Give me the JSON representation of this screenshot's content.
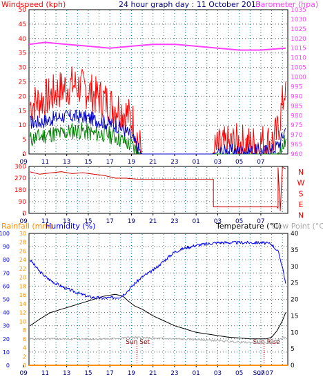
{
  "header": {
    "left": "Windspeed (kph)",
    "center": "24 hour graph day : 11 October 2013",
    "right": "Barometer (hpa)"
  },
  "colors": {
    "wind_gust": "#ff0000",
    "wind_avg": "#0000c8",
    "wind_low": "#008000",
    "barometer": "#ff40ff",
    "direction": "#d00000",
    "rainfall": "#ff8c00",
    "humidity": "#0000ff",
    "temperature": "#000000",
    "dew": "#aaaaaa",
    "axis": "#000000",
    "grid": "#008080"
  },
  "x_ticks": [
    "11",
    "13",
    "15",
    "17",
    "19",
    "21",
    "23",
    "01",
    "03",
    "05",
    "07",
    "09"
  ],
  "mid_labels": {
    "sunset": "Sun Set",
    "sunrise": "Sun Rise"
  },
  "bottom_axis_extra": [
    "Sun",
    "07"
  ],
  "chart_data": [
    {
      "type": "line",
      "title": "24 hour graph day : 11 October 2013",
      "y_left_label": "Windspeed (kph)",
      "y_right_label": "Barometer (hpa)",
      "x_range_hours": [
        9.5,
        33.5
      ],
      "y_left_range": [
        0,
        50
      ],
      "y_left_ticks": [
        0,
        5,
        10,
        15,
        20,
        25,
        30,
        35,
        40,
        45,
        50
      ],
      "y_right_range": [
        960,
        1035
      ],
      "y_right_ticks": [
        960,
        965,
        970,
        975,
        980,
        985,
        990,
        995,
        1000,
        1005,
        1010,
        1015,
        1020,
        1025,
        1030,
        1035
      ],
      "series": [
        {
          "name": "Windspeed (kph)",
          "axis": "left",
          "x": [
            9.6,
            10.2,
            10.8,
            11.5,
            12.2,
            12.9,
            13.6,
            14.3,
            15.0,
            15.7,
            16.4,
            17.1,
            17.8,
            18.5,
            19.2,
            19.6,
            20.0,
            21.0,
            23.0,
            25.0,
            26.5,
            27.0,
            28.0,
            29.0,
            30.0,
            31.0,
            32.0,
            32.5,
            33.0,
            33.3
          ],
          "values": [
            17,
            18,
            19,
            20,
            22,
            23,
            24,
            23,
            22,
            20,
            19,
            17,
            16,
            14,
            11,
            5,
            0,
            0,
            0,
            0,
            0,
            2,
            3,
            4,
            3,
            4,
            4,
            7,
            17,
            25
          ]
        },
        {
          "name": "Windspeed avg",
          "axis": "left",
          "x": [
            9.6,
            10.5,
            11.5,
            12.5,
            13.5,
            14.5,
            15.5,
            16.5,
            17.5,
            18.5,
            19.2,
            19.6,
            20.0,
            26.5,
            27.5,
            29.0,
            30.5,
            32.0,
            32.8,
            33.3
          ],
          "values": [
            11,
            11,
            12,
            13,
            13,
            13,
            12,
            11,
            10,
            8,
            5,
            2,
            0,
            0,
            1,
            1,
            1,
            1,
            4,
            9
          ]
        },
        {
          "name": "Windspeed low",
          "axis": "left",
          "x": [
            9.6,
            10.5,
            11.5,
            12.5,
            13.5,
            14.5,
            15.5,
            16.5,
            17.5,
            18.5,
            19.0,
            19.5,
            20.0,
            32.5,
            33.0,
            33.3
          ],
          "values": [
            5,
            6,
            7,
            7,
            8,
            8,
            7,
            7,
            6,
            4,
            3,
            1,
            0,
            0,
            2,
            5
          ]
        },
        {
          "name": "Barometer (hpa)",
          "axis": "right",
          "x": [
            9.5,
            11.0,
            13.0,
            15.0,
            17.0,
            19.0,
            21.0,
            23.0,
            25.0,
            27.0,
            29.0,
            31.0,
            33.3
          ],
          "values": [
            1017,
            1018,
            1017,
            1016,
            1015,
            1016,
            1017,
            1017,
            1016,
            1015,
            1014,
            1014,
            1015
          ]
        }
      ]
    },
    {
      "type": "line",
      "y_left_range": [
        0,
        360
      ],
      "y_left_ticks": [
        0,
        90,
        180,
        270,
        360
      ],
      "right_labels": [
        "N",
        "W",
        "S",
        "E",
        "N"
      ],
      "series": [
        {
          "name": "Wind direction",
          "x": [
            9.6,
            10.5,
            11.5,
            12.5,
            13.5,
            14.5,
            15.5,
            16.5,
            17.5,
            18.5,
            19.5,
            20.0,
            26.6,
            26.6,
            32.5,
            32.6,
            32.6,
            32.8,
            33.0,
            33.3
          ],
          "values": [
            318,
            300,
            310,
            320,
            305,
            312,
            300,
            290,
            270,
            270,
            262,
            262,
            262,
            50,
            50,
            40,
            350,
            20,
            355,
            340
          ]
        }
      ]
    },
    {
      "type": "line",
      "header_left": "Rainfall (mm)",
      "header_mid": "Humidity (%)",
      "header_right_a": "Temperature (°C)",
      "header_right_b": "Dew Point (°C)",
      "rain_ticks": [
        0,
        2,
        4,
        6,
        8,
        10,
        12,
        14,
        16,
        18,
        20,
        22,
        24,
        26,
        28,
        30
      ],
      "hum_ticks": [
        0,
        10,
        20,
        30,
        40,
        50,
        60,
        70,
        80,
        90,
        100
      ],
      "temp_ticks": [
        0,
        5,
        10,
        15,
        20,
        25,
        30,
        35,
        40
      ],
      "series": [
        {
          "name": "Humidity (%)",
          "axis": "humidity",
          "x": [
            9.6,
            10.0,
            10.5,
            11.2,
            12.0,
            13.0,
            14.0,
            15.0,
            16.0,
            17.0,
            18.0,
            18.6,
            19.3,
            20.0,
            21.0,
            22.0,
            23.0,
            24.0,
            25.0,
            26.0,
            27.0,
            28.0,
            29.0,
            30.0,
            31.0,
            32.0,
            32.6,
            33.0,
            33.3
          ],
          "values": [
            80,
            76,
            71,
            66,
            62,
            58,
            55,
            52,
            51,
            51,
            52,
            56,
            62,
            67,
            72,
            79,
            86,
            89,
            91,
            92,
            93,
            93,
            93,
            93,
            93,
            92,
            86,
            75,
            62
          ]
        },
        {
          "name": "Temperature (°C)",
          "axis": "temperature",
          "x": [
            9.6,
            10.5,
            11.5,
            12.5,
            13.5,
            14.5,
            15.5,
            16.5,
            17.5,
            18.2,
            18.7,
            19.3,
            20.0,
            21.0,
            22.0,
            23.0,
            24.0,
            25.0,
            26.0,
            27.0,
            28.0,
            29.0,
            30.0,
            31.0,
            31.5,
            32.0,
            32.5,
            33.0,
            33.3
          ],
          "values": [
            12,
            14,
            16,
            17,
            18,
            19,
            20,
            21,
            21.5,
            21,
            19.5,
            18,
            17,
            15,
            13.5,
            12,
            11,
            10,
            9.5,
            9,
            8.5,
            8.3,
            8,
            8,
            8,
            8.5,
            10.5,
            13.5,
            16
          ]
        },
        {
          "name": "Dew Point (°C)",
          "axis": "temperature",
          "x": [
            9.6,
            11.0,
            13.0,
            15.0,
            17.0,
            19.0,
            21.0,
            23.0,
            25.0,
            27.0,
            29.0,
            31.0,
            32.0,
            33.0,
            33.3
          ],
          "values": [
            8,
            8,
            8,
            8,
            8,
            8.5,
            8.2,
            8,
            7.8,
            7.5,
            7,
            6.8,
            6.9,
            8.2,
            8.6
          ]
        },
        {
          "name": "Rainfall (mm)",
          "axis": "rain",
          "x": [
            9.5,
            33.5
          ],
          "values": [
            0,
            0
          ]
        }
      ]
    }
  ]
}
